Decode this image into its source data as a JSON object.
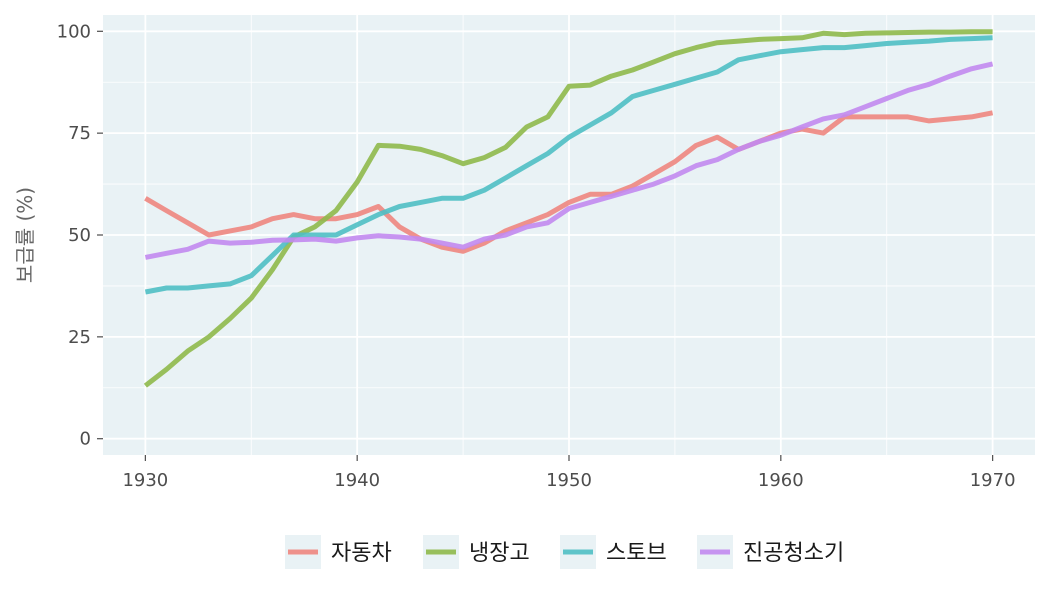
{
  "chart_data": {
    "type": "line",
    "title": "",
    "xlabel": "",
    "ylabel": "보급률 (%)",
    "xlim": [
      1928,
      1972
    ],
    "ylim": [
      -4,
      104
    ],
    "xticks": [
      1930,
      1940,
      1950,
      1960,
      1970
    ],
    "yticks": [
      0,
      25,
      50,
      75,
      100
    ],
    "xtick_labels": [
      "1930",
      "1940",
      "1950",
      "1960",
      "1970"
    ],
    "ytick_labels": [
      "0",
      "25",
      "50",
      "75",
      "100"
    ],
    "grid": true,
    "legend_position": "bottom",
    "x": [
      1930,
      1931,
      1932,
      1933,
      1934,
      1935,
      1936,
      1937,
      1938,
      1939,
      1940,
      1941,
      1942,
      1943,
      1944,
      1945,
      1946,
      1947,
      1948,
      1949,
      1950,
      1951,
      1952,
      1953,
      1954,
      1955,
      1956,
      1957,
      1958,
      1959,
      1960,
      1961,
      1962,
      1963,
      1964,
      1965,
      1966,
      1967,
      1968,
      1969,
      1970
    ],
    "series": [
      {
        "name": "자동차",
        "color": "#ee8680",
        "values": [
          59,
          56,
          53,
          50,
          51,
          52,
          54,
          55,
          54,
          54,
          55,
          57,
          52,
          49,
          47,
          46,
          48,
          51,
          53,
          55,
          58,
          60,
          60,
          62,
          65,
          68,
          72,
          74,
          71,
          73,
          75,
          76,
          75,
          79,
          79,
          79,
          79,
          78,
          78.5,
          79,
          80
        ]
      },
      {
        "name": "냉장고",
        "color": "#8fb94b",
        "values": [
          13,
          17,
          21.5,
          25,
          29.5,
          34.5,
          41.5,
          49.5,
          52,
          56,
          63,
          72,
          71.8,
          71,
          69.5,
          67.5,
          69,
          71.5,
          76.5,
          79,
          86.5,
          86.8,
          89,
          90.5,
          92.5,
          94.5,
          96,
          97.2,
          97.6,
          98,
          98.2,
          98.4,
          99.5,
          99.2,
          99.5,
          99.6,
          99.7,
          99.8,
          99.8,
          99.9,
          99.9
        ]
      },
      {
        "name": "스토브",
        "color": "#4fbfc4",
        "values": [
          36,
          37,
          37,
          37.5,
          38,
          40,
          45,
          50,
          50,
          50,
          52.5,
          55,
          57,
          58,
          59,
          59,
          61,
          64,
          67,
          70,
          74,
          77,
          80,
          84,
          85.5,
          87,
          88.5,
          90,
          93,
          94,
          95,
          95.5,
          96,
          96,
          96.5,
          97,
          97.3,
          97.6,
          98,
          98.2,
          98.4
        ]
      },
      {
        "name": "진공청소기",
        "color": "#c28af0",
        "values": [
          44.5,
          45.5,
          46.5,
          48.5,
          48,
          48.2,
          48.7,
          48.8,
          49,
          48.5,
          49.3,
          49.8,
          49.5,
          49,
          48,
          47,
          49,
          50,
          52,
          53,
          56.5,
          58,
          59.5,
          61,
          62.5,
          64.5,
          67,
          68.5,
          71,
          73,
          74.5,
          76.5,
          78.5,
          79.5,
          81.5,
          83.5,
          85.5,
          87,
          89,
          90.8,
          92
        ]
      }
    ]
  }
}
